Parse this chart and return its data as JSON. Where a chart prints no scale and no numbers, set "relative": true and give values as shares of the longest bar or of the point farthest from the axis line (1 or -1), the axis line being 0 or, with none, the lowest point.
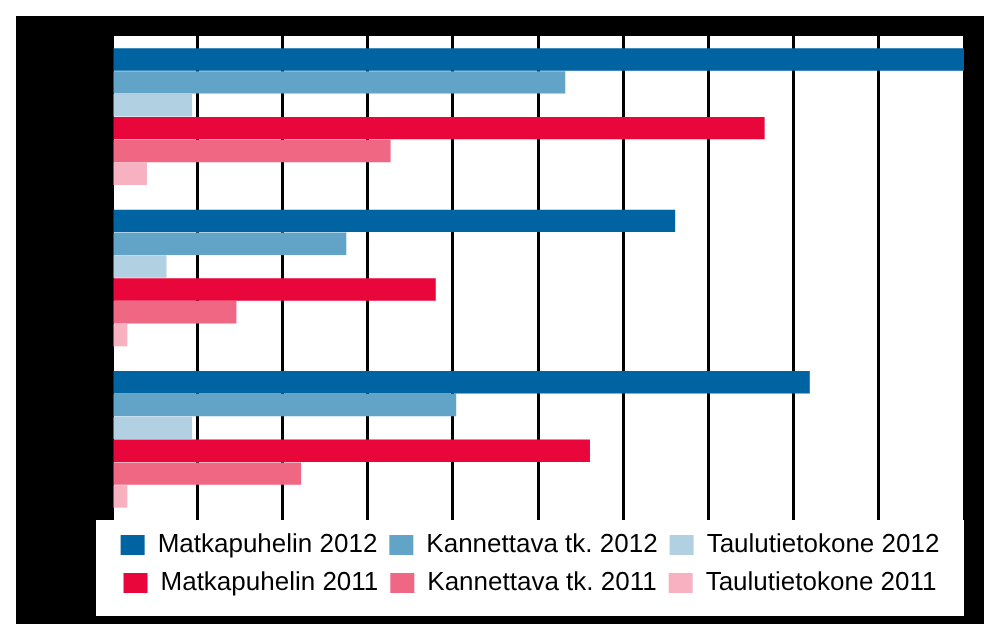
{
  "chart_data": {
    "type": "bar",
    "orientation": "horizontal",
    "relative": true,
    "grid": "x",
    "legend": "bottom",
    "categories": [
      null,
      null,
      null
    ],
    "series": [
      {
        "name": "Matkapuhelin 2012",
        "color": "#0064a3",
        "values": [
          1,
          0.661,
          0.819
        ]
      },
      {
        "name": "Kannettava tk. 2012",
        "color": "#62a3c8",
        "values": [
          0.532,
          0.275,
          0.404
        ]
      },
      {
        "name": "Taulutietokone 2012",
        "color": "#b1d1e3",
        "values": [
          0.094,
          0.064,
          0.094
        ]
      },
      {
        "name": "Matkapuhelin 2011",
        "color": "#e8063a",
        "values": [
          0.766,
          0.38,
          0.561
        ]
      },
      {
        "name": "Kannettava tk. 2011",
        "color": "#f06784",
        "values": [
          0.327,
          0.146,
          0.222
        ]
      },
      {
        "name": "Taulutietokone 2011",
        "color": "#f7b1c1",
        "values": [
          0.041,
          0.018,
          0.018
        ]
      }
    ]
  }
}
